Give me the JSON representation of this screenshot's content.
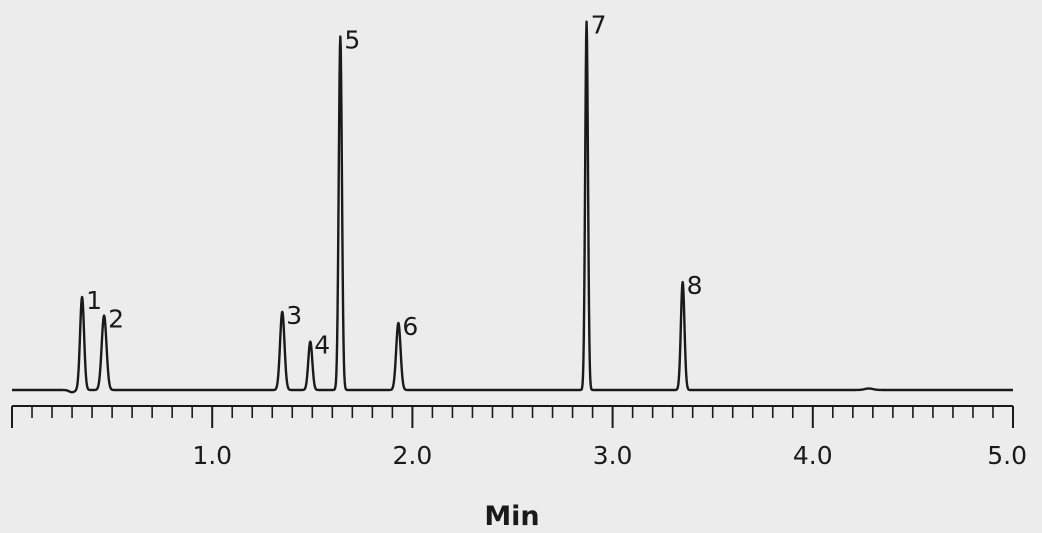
{
  "chart_data": {
    "type": "line",
    "title": "",
    "xlabel": "Min",
    "ylabel": "",
    "xlim": [
      0.0,
      5.0
    ],
    "ylim": [
      0,
      1.0
    ],
    "x_ticks": [
      "1.0",
      "2.0",
      "3.0",
      "4.0",
      "5.0"
    ],
    "x_tick_values": [
      1.0,
      2.0,
      3.0,
      4.0,
      5.0
    ],
    "minor_tick_step": 0.1,
    "grid": false,
    "line_color": "#1a1a1a",
    "baseline": 0.0,
    "peaks": [
      {
        "label": "1",
        "x": 0.35,
        "height": 0.25,
        "width": 0.01
      },
      {
        "label": "2",
        "x": 0.46,
        "height": 0.2,
        "width": 0.012
      },
      {
        "label": "3",
        "x": 1.35,
        "height": 0.21,
        "width": 0.011
      },
      {
        "label": "4",
        "x": 1.49,
        "height": 0.13,
        "width": 0.01
      },
      {
        "label": "5",
        "x": 1.64,
        "height": 0.95,
        "width": 0.008
      },
      {
        "label": "6",
        "x": 1.93,
        "height": 0.18,
        "width": 0.011
      },
      {
        "label": "7",
        "x": 2.87,
        "height": 0.99,
        "width": 0.007
      },
      {
        "label": "8",
        "x": 3.35,
        "height": 0.29,
        "width": 0.009
      }
    ]
  }
}
